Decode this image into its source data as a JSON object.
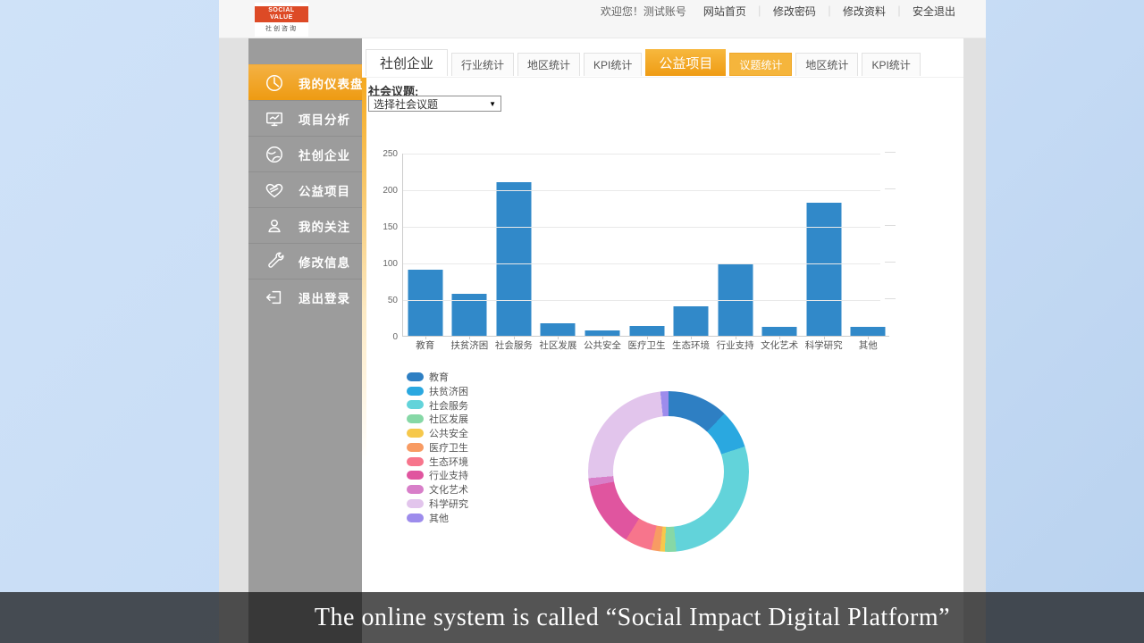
{
  "header": {
    "logo": {
      "line1": "SOCIAL VALUE",
      "line2": "社创咨询"
    },
    "welcome": "欢迎您！测试账号",
    "links": [
      "网站首页",
      "修改密码",
      "修改资料",
      "安全退出"
    ],
    "divider": "｜"
  },
  "sidebar": {
    "items": [
      {
        "label": "我的仪表盘",
        "icon": "dashboard-clock-icon",
        "active": true
      },
      {
        "label": "项目分析",
        "icon": "monitor-chart-icon",
        "active": false
      },
      {
        "label": "社创企业",
        "icon": "enterprise-globe-icon",
        "active": false
      },
      {
        "label": "公益项目",
        "icon": "heart-icon",
        "active": false
      },
      {
        "label": "我的关注",
        "icon": "user-icon",
        "active": false
      },
      {
        "label": "修改信息",
        "icon": "wrench-icon",
        "active": false
      },
      {
        "label": "退出登录",
        "icon": "logout-icon",
        "active": false
      }
    ]
  },
  "tabs": {
    "groups": [
      {
        "label": "社创企业",
        "active": false,
        "subtabs": [
          {
            "label": "行业统计",
            "active": false
          },
          {
            "label": "地区统计",
            "active": false
          },
          {
            "label": "KPI统计",
            "active": false
          }
        ]
      },
      {
        "label": "公益项目",
        "active": true,
        "subtabs": [
          {
            "label": "议题统计",
            "active": true
          },
          {
            "label": "地区统计",
            "active": false
          },
          {
            "label": "KPI统计",
            "active": false
          }
        ]
      }
    ]
  },
  "filter": {
    "label": "社会议题:",
    "select_value": "选择社会议题",
    "arrow": "▼"
  },
  "chart_data": [
    {
      "type": "bar",
      "categories": [
        "教育",
        "扶贫济困",
        "社会服务",
        "社区发展",
        "公共安全",
        "医疗卫生",
        "生态环境",
        "行业支持",
        "文化艺术",
        "科学研究",
        "其他"
      ],
      "values": [
        90,
        57,
        210,
        17,
        7,
        13,
        40,
        97,
        12,
        182,
        12
      ],
      "title": "",
      "xlabel": "",
      "ylabel": "",
      "ylim": [
        0,
        250
      ],
      "yticks": [
        0,
        50,
        100,
        150,
        200,
        250
      ],
      "grid": true,
      "bar_color": "#3189c9"
    },
    {
      "type": "pie",
      "subtype": "donut",
      "categories": [
        "教育",
        "扶贫济困",
        "社会服务",
        "社区发展",
        "公共安全",
        "医疗卫生",
        "生态环境",
        "行业支持",
        "文化艺术",
        "科学研究",
        "其他"
      ],
      "values": [
        90,
        57,
        210,
        17,
        7,
        13,
        40,
        97,
        12,
        182,
        12
      ],
      "colors": [
        "#2e7fc3",
        "#2aa8e0",
        "#62d3da",
        "#86d8a6",
        "#f6c84b",
        "#f89b63",
        "#f7758c",
        "#e0559f",
        "#d87fc9",
        "#e2c5ec",
        "#9d8cec"
      ],
      "legend_position": "left",
      "start_angle_deg": 0,
      "direction": "clockwise"
    }
  ],
  "caption": {
    "text": "The online system is called “Social Impact Digital Platform”"
  },
  "colors": {
    "accent_orange": "#f0a01e",
    "sidebar_gray": "#9c9c9c",
    "bar_blue": "#3189c9",
    "background_blue": "#c7dcf5",
    "logo_red": "#dd4a26"
  }
}
